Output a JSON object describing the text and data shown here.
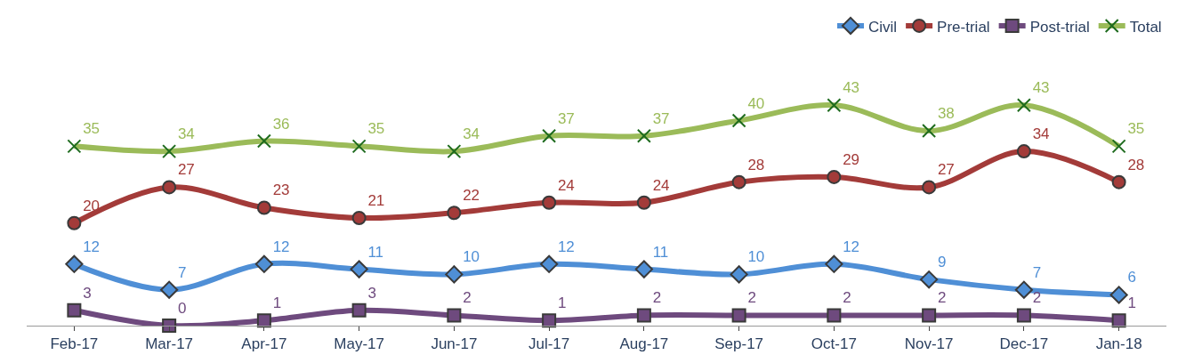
{
  "chart_data": {
    "type": "line",
    "categories": [
      "Feb-17",
      "Mar-17",
      "Apr-17",
      "May-17",
      "Jun-17",
      "Jul-17",
      "Aug-17",
      "Sep-17",
      "Oct-17",
      "Nov-17",
      "Dec-17",
      "Jan-18"
    ],
    "series": [
      {
        "name": "Civil",
        "color": "#4f8fd6",
        "marker": "diamond",
        "values": [
          12,
          7,
          12,
          11,
          10,
          12,
          11,
          10,
          12,
          9,
          7,
          6
        ]
      },
      {
        "name": "Pre-trial",
        "color": "#a33b39",
        "marker": "circle",
        "values": [
          20,
          27,
          23,
          21,
          22,
          24,
          24,
          28,
          29,
          27,
          34,
          28
        ]
      },
      {
        "name": "Post-trial",
        "color": "#6e4a7e",
        "marker": "square",
        "values": [
          3,
          0,
          1,
          3,
          2,
          1,
          2,
          2,
          2,
          2,
          2,
          1
        ]
      },
      {
        "name": "Total",
        "color": "#9bbb59",
        "marker": "cross",
        "values": [
          35,
          34,
          36,
          35,
          34,
          37,
          37,
          40,
          43,
          38,
          43,
          35
        ]
      }
    ],
    "data_labels": true,
    "legend": "top right",
    "line_style": "solid"
  }
}
